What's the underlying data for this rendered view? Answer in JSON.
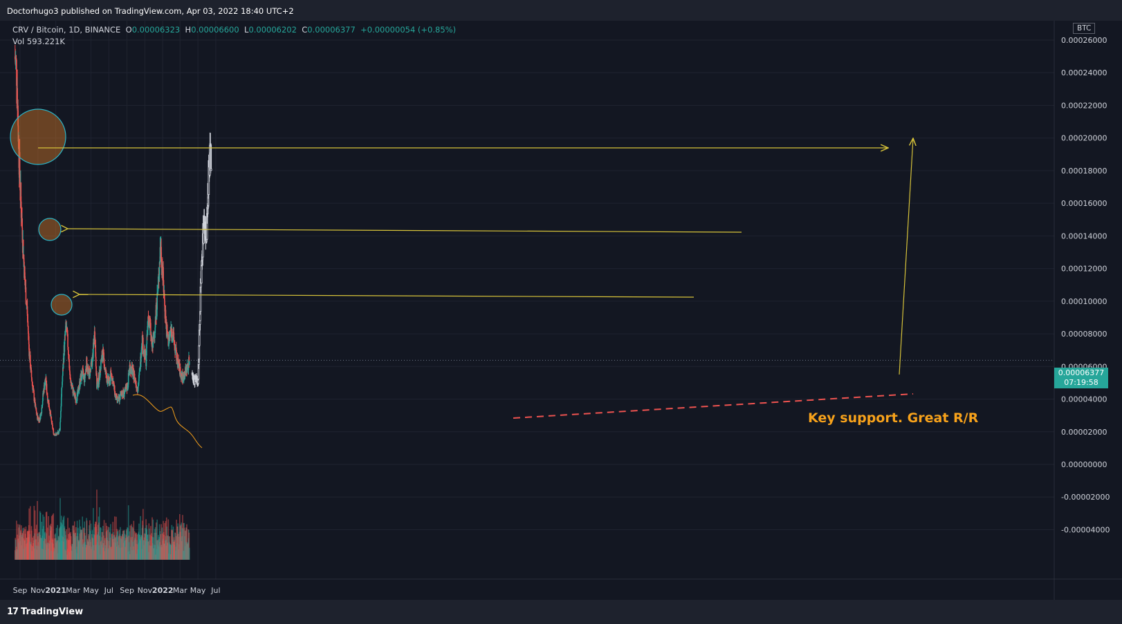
{
  "publisher": "Doctorhugo3 published on TradingView.com, Apr 03, 2022 18:40 UTC+2",
  "brand": "TradingView",
  "legend": {
    "symbol": "CRV / Bitcoin, 1D, BINANCE",
    "open_label": "O",
    "open": "0.00006323",
    "high_label": "H",
    "high": "0.00006600",
    "low_label": "L",
    "low": "0.00006202",
    "close_label": "C",
    "close": "0.00006377",
    "change": "+0.00000054 (+0.85%)",
    "vol_label": "Vol",
    "vol": "593.221K"
  },
  "currency": "BTC",
  "last_price": {
    "value": "0.00006377",
    "countdown": "07:19:58"
  },
  "annotation": "Key support. Great R/R",
  "colors": {
    "up": "#26a69a",
    "down": "#ef5350",
    "projection": "#d1d4dc",
    "arrow": "#d8c43a",
    "support": "#ef5350",
    "annotation": "#f7a21b",
    "background": "#131722"
  },
  "chart_data": {
    "type": "candlestick",
    "x_tick_labels": [
      "Sep",
      "Nov",
      "2021",
      "Mar",
      "May",
      "Jul",
      "Sep",
      "Nov",
      "2022",
      "Mar",
      "May",
      "Jul"
    ],
    "y_tick_labels": [
      "0.00026000",
      "0.00024000",
      "0.00022000",
      "0.00020000",
      "0.00018000",
      "0.00016000",
      "0.00014000",
      "0.00012000",
      "0.00010000",
      "0.00008000",
      "0.00006000",
      "0.00004000",
      "0.00002000",
      "0.00000000",
      "-0.00002000",
      "-0.00004000"
    ],
    "ylim": [
      -4.5e-05,
      0.000272
    ],
    "series": [
      {
        "name": "CRV / Bitcoin",
        "points": [
          {
            "date": "2020-08-15",
            "close": 0.00025
          },
          {
            "date": "2020-08-22",
            "close": 0.00024
          },
          {
            "date": "2020-08-29",
            "close": 0.00019
          },
          {
            "date": "2020-09-05",
            "close": 0.00016
          },
          {
            "date": "2020-09-12",
            "close": 0.000135
          },
          {
            "date": "2020-09-19",
            "close": 0.00011
          },
          {
            "date": "2020-09-26",
            "close": 9.5e-05
          },
          {
            "date": "2020-10-03",
            "close": 7e-05
          },
          {
            "date": "2020-10-10",
            "close": 5.5e-05
          },
          {
            "date": "2020-10-17",
            "close": 4.5e-05
          },
          {
            "date": "2020-10-24",
            "close": 3.5e-05
          },
          {
            "date": "2020-10-31",
            "close": 2.9e-05
          },
          {
            "date": "2020-11-07",
            "close": 2.7e-05
          },
          {
            "date": "2020-11-14",
            "close": 3.3e-05
          },
          {
            "date": "2020-11-21",
            "close": 4.5e-05
          },
          {
            "date": "2020-11-28",
            "close": 5.2e-05
          },
          {
            "date": "2020-12-05",
            "close": 4.1e-05
          },
          {
            "date": "2020-12-12",
            "close": 3.4e-05
          },
          {
            "date": "2020-12-19",
            "close": 2.5e-05
          },
          {
            "date": "2020-12-26",
            "close": 1.9e-05
          },
          {
            "date": "2021-01-02",
            "close": 1.8e-05
          },
          {
            "date": "2021-01-09",
            "close": 1.9e-05
          },
          {
            "date": "2021-01-16",
            "close": 2.2e-05
          },
          {
            "date": "2021-01-23",
            "close": 4.8e-05
          },
          {
            "date": "2021-01-30",
            "close": 7e-05
          },
          {
            "date": "2021-02-06",
            "close": 8.5e-05
          },
          {
            "date": "2021-02-13",
            "close": 7.2e-05
          },
          {
            "date": "2021-02-20",
            "close": 5.2e-05
          },
          {
            "date": "2021-02-27",
            "close": 4.7e-05
          },
          {
            "date": "2021-03-06",
            "close": 4.2e-05
          },
          {
            "date": "2021-03-13",
            "close": 4e-05
          },
          {
            "date": "2021-03-20",
            "close": 4.5e-05
          },
          {
            "date": "2021-03-27",
            "close": 5.2e-05
          },
          {
            "date": "2021-04-03",
            "close": 5.6e-05
          },
          {
            "date": "2021-04-10",
            "close": 5.2e-05
          },
          {
            "date": "2021-04-17",
            "close": 6.2e-05
          },
          {
            "date": "2021-04-24",
            "close": 5.5e-05
          },
          {
            "date": "2021-05-01",
            "close": 5.8e-05
          },
          {
            "date": "2021-05-08",
            "close": 6.6e-05
          },
          {
            "date": "2021-05-15",
            "close": 8.2e-05
          },
          {
            "date": "2021-05-22",
            "close": 4.8e-05
          },
          {
            "date": "2021-05-29",
            "close": 5.2e-05
          },
          {
            "date": "2021-06-05",
            "close": 6.2e-05
          },
          {
            "date": "2021-06-12",
            "close": 6.8e-05
          },
          {
            "date": "2021-06-19",
            "close": 5.8e-05
          },
          {
            "date": "2021-06-26",
            "close": 5.2e-05
          },
          {
            "date": "2021-07-03",
            "close": 5e-05
          },
          {
            "date": "2021-07-10",
            "close": 5.6e-05
          },
          {
            "date": "2021-07-17",
            "close": 5e-05
          },
          {
            "date": "2021-07-24",
            "close": 4.2e-05
          },
          {
            "date": "2021-07-31",
            "close": 3.9e-05
          },
          {
            "date": "2021-08-07",
            "close": 4e-05
          },
          {
            "date": "2021-08-14",
            "close": 4.4e-05
          },
          {
            "date": "2021-08-21",
            "close": 4.3e-05
          },
          {
            "date": "2021-08-28",
            "close": 4.5e-05
          },
          {
            "date": "2021-09-04",
            "close": 4.8e-05
          },
          {
            "date": "2021-09-11",
            "close": 6e-05
          },
          {
            "date": "2021-09-18",
            "close": 5.8e-05
          },
          {
            "date": "2021-09-25",
            "close": 5.5e-05
          },
          {
            "date": "2021-10-02",
            "close": 5e-05
          },
          {
            "date": "2021-10-09",
            "close": 4.6e-05
          },
          {
            "date": "2021-10-16",
            "close": 5.8e-05
          },
          {
            "date": "2021-10-23",
            "close": 7.8e-05
          },
          {
            "date": "2021-10-30",
            "close": 6.8e-05
          },
          {
            "date": "2021-11-06",
            "close": 6.4e-05
          },
          {
            "date": "2021-11-13",
            "close": 9e-05
          },
          {
            "date": "2021-11-20",
            "close": 8.5e-05
          },
          {
            "date": "2021-11-27",
            "close": 7e-05
          },
          {
            "date": "2021-12-04",
            "close": 8e-05
          },
          {
            "date": "2021-12-11",
            "close": 9.5e-05
          },
          {
            "date": "2021-12-18",
            "close": 0.00011
          },
          {
            "date": "2021-12-25",
            "close": 0.000135
          },
          {
            "date": "2022-01-01",
            "close": 0.00012
          },
          {
            "date": "2022-01-08",
            "close": 0.0001
          },
          {
            "date": "2022-01-15",
            "close": 8.2e-05
          },
          {
            "date": "2022-01-22",
            "close": 7.5e-05
          },
          {
            "date": "2022-01-29",
            "close": 8.2e-05
          },
          {
            "date": "2022-02-05",
            "close": 8e-05
          },
          {
            "date": "2022-02-12",
            "close": 7.2e-05
          },
          {
            "date": "2022-02-19",
            "close": 6.5e-05
          },
          {
            "date": "2022-02-26",
            "close": 6e-05
          },
          {
            "date": "2022-03-05",
            "close": 5.5e-05
          },
          {
            "date": "2022-03-12",
            "close": 5.3e-05
          },
          {
            "date": "2022-03-19",
            "close": 5.6e-05
          },
          {
            "date": "2022-03-26",
            "close": 5.9e-05
          },
          {
            "date": "2022-04-03",
            "close": 6.377e-05
          }
        ]
      },
      {
        "name": "projection",
        "points": [
          {
            "date": "2022-04-12",
            "close": 5.5e-05
          },
          {
            "date": "2022-04-19",
            "close": 5.2e-05
          },
          {
            "date": "2022-04-26",
            "close": 5.1e-05
          },
          {
            "date": "2022-05-03",
            "close": 5.2e-05
          },
          {
            "date": "2022-05-07",
            "close": 8e-05
          },
          {
            "date": "2022-05-12",
            "close": 0.00011
          },
          {
            "date": "2022-05-18",
            "close": 0.000135
          },
          {
            "date": "2022-05-24",
            "close": 0.00015
          },
          {
            "date": "2022-05-31",
            "close": 0.00014
          },
          {
            "date": "2022-06-07",
            "close": 0.000175
          },
          {
            "date": "2022-06-12",
            "close": 0.00019
          },
          {
            "date": "2022-06-16",
            "close": 0.00018
          }
        ]
      }
    ],
    "volume": {
      "label": "Vol",
      "last": "593.221K"
    },
    "current_price": 6.377e-05
  }
}
